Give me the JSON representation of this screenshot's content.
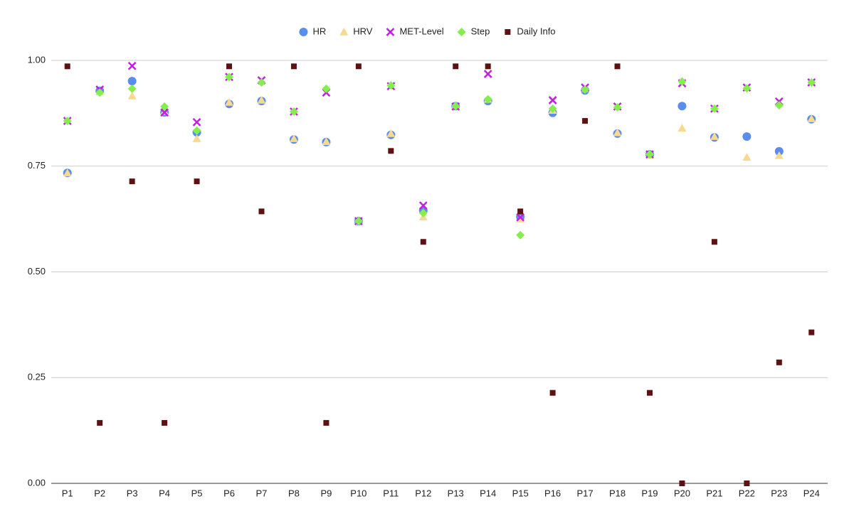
{
  "chart_data": {
    "type": "scatter",
    "categories": [
      "P1",
      "P2",
      "P3",
      "P4",
      "P5",
      "P6",
      "P7",
      "P8",
      "P9",
      "P10",
      "P11",
      "P12",
      "P13",
      "P14",
      "P15",
      "P16",
      "P17",
      "P18",
      "P19",
      "P20",
      "P21",
      "P22",
      "P23",
      "P24"
    ],
    "series": [
      {
        "name": "HR",
        "color": "#5a8ded",
        "marker": "circle",
        "values": [
          0.734,
          0.928,
          0.951,
          0.877,
          0.83,
          0.897,
          0.904,
          0.813,
          0.807,
          0.62,
          0.824,
          0.645,
          0.892,
          0.904,
          0.63,
          0.876,
          0.929,
          0.827,
          0.778,
          0.892,
          0.818,
          0.82,
          0.785,
          0.861
        ]
      },
      {
        "name": "HRV",
        "color": "#f7d990",
        "marker": "triangle",
        "values": [
          0.734,
          0.926,
          0.916,
          0.879,
          0.815,
          0.901,
          0.906,
          0.815,
          0.808,
          0.62,
          0.827,
          0.63,
          0.894,
          0.908,
          0.625,
          0.882,
          0.933,
          0.829,
          0.776,
          0.84,
          0.82,
          0.771,
          0.775,
          0.862
        ]
      },
      {
        "name": "MET-Level",
        "color": "#c41de3",
        "marker": "x",
        "values": [
          0.857,
          0.931,
          0.987,
          0.877,
          0.854,
          0.961,
          0.953,
          0.879,
          0.924,
          0.62,
          0.939,
          0.657,
          0.891,
          0.968,
          0.629,
          0.906,
          0.936,
          0.891,
          0.778,
          0.946,
          0.886,
          0.936,
          0.903,
          0.948
        ]
      },
      {
        "name": "Step",
        "color": "#84ef4c",
        "marker": "diamond",
        "values": [
          0.857,
          0.924,
          0.933,
          0.891,
          0.834,
          0.961,
          0.948,
          0.879,
          0.933,
          0.62,
          0.941,
          0.639,
          0.892,
          0.908,
          0.587,
          0.886,
          0.931,
          0.889,
          0.778,
          0.95,
          0.886,
          0.934,
          0.894,
          0.948
        ]
      },
      {
        "name": "Daily Info",
        "color": "#5e1111",
        "marker": "square",
        "values": [
          0.986,
          0.143,
          0.714,
          0.143,
          0.714,
          0.986,
          0.643,
          0.986,
          0.143,
          0.986,
          0.786,
          0.571,
          0.986,
          0.986,
          0.643,
          0.214,
          0.857,
          0.986,
          0.214,
          0,
          0.571,
          0,
          0.286,
          0.357
        ]
      }
    ],
    "ylim": [
      0,
      1
    ],
    "yticks": [
      {
        "value": 0,
        "label": "0.00"
      },
      {
        "value": 0.25,
        "label": "0.25"
      },
      {
        "value": 0.5,
        "label": "0.50"
      },
      {
        "value": 0.75,
        "label": "0.75"
      },
      {
        "value": 1,
        "label": "1.00"
      }
    ],
    "grid": true,
    "legend": "top"
  }
}
